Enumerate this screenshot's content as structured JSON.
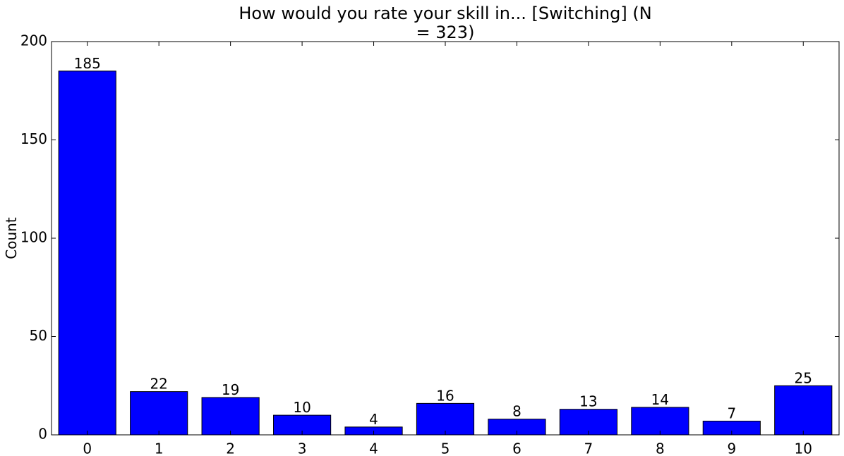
{
  "chart_data": {
    "type": "bar",
    "title": [
      "How would you rate your skill in... [Switching] (N",
      "= 323)"
    ],
    "y_label": "Count",
    "categories": [
      "0",
      "1",
      "2",
      "3",
      "4",
      "5",
      "6",
      "7",
      "8",
      "9",
      "10"
    ],
    "values": [
      185,
      22,
      19,
      10,
      4,
      16,
      8,
      13,
      14,
      7,
      25
    ],
    "color": "#0000ff",
    "ylim": [
      0,
      200
    ],
    "yticks": [
      0,
      50,
      100,
      150,
      200
    ]
  }
}
